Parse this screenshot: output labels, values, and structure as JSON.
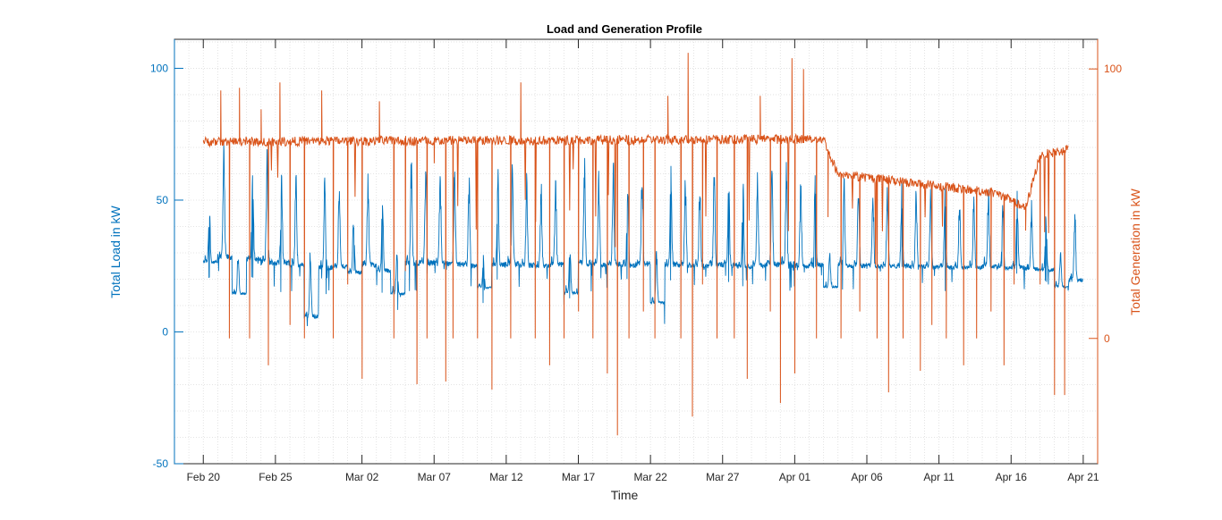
{
  "chart_data": {
    "type": "line",
    "title": "Load and Generation Profile",
    "xlabel": "Time",
    "ylabel_left": "Total Load in kW",
    "ylabel_right": "Total Generation in kW",
    "x_tick_labels": [
      "Feb 20",
      "Feb 25",
      "Mar 02",
      "Mar 07",
      "Mar 12",
      "Mar 17",
      "Mar 22",
      "Mar 27",
      "Apr 01",
      "Apr 06",
      "Apr 11",
      "Apr 16",
      "Apr 21"
    ],
    "x_range": [
      "Feb 18",
      "Apr 22"
    ],
    "y_left_ticks": [
      "-50",
      "0",
      "50",
      "100"
    ],
    "y_left_range": [
      -50,
      111
    ],
    "y_right_ticks": [
      "0",
      "100"
    ],
    "y_right_range": [
      -46.5,
      111
    ],
    "grid": "minor dotted",
    "colors": {
      "load": "#0072bd",
      "generation": "#d95319",
      "axes": "#262626"
    },
    "series": [
      {
        "axis": "left",
        "color": "#0072bd",
        "x_start": "Feb 20",
        "x_end": "Apr 20",
        "profile": "daily cycle",
        "daily_peaks": [
          48,
          68,
          30,
          62,
          66,
          64,
          58,
          30,
          57,
          55,
          45,
          60,
          50,
          30,
          64,
          65,
          62,
          60,
          58,
          28,
          60,
          62,
          58,
          55,
          60,
          32,
          64,
          60,
          62,
          58,
          62,
          30,
          60,
          58,
          56,
          60,
          58,
          55,
          58,
          60,
          62,
          56,
          58,
          30,
          58,
          57,
          55,
          55,
          56,
          54,
          53,
          52,
          50,
          52,
          55,
          50,
          52,
          48,
          45,
          30,
          48
        ],
        "daily_base": [
          23,
          22,
          12,
          22,
          20,
          20,
          20,
          2,
          19,
          20,
          19,
          20,
          19,
          12,
          20,
          20,
          20,
          20,
          20,
          15,
          20,
          20,
          20,
          20,
          20,
          12,
          20,
          20,
          20,
          20,
          20,
          8,
          20,
          20,
          20,
          20,
          20,
          20,
          20,
          20,
          20,
          20,
          20,
          15,
          20,
          20,
          20,
          20,
          20,
          20,
          20,
          20,
          20,
          20,
          20,
          20,
          20,
          20,
          20,
          15,
          15
        ]
      },
      {
        "axis": "right",
        "color": "#d95319",
        "x_start": "Feb 20",
        "x_end": "Apr 20",
        "profile": "plateau",
        "plateau_x": [
          "Feb 20",
          "Apr 03",
          "Apr 04",
          "Apr 15",
          "Apr 17",
          "Apr 18",
          "Apr 20"
        ],
        "plateau_y": [
          73,
          74,
          61,
          54,
          48,
          68,
          70
        ],
        "spikes": [
          {
            "x": "Feb 21.2",
            "y": 92
          },
          {
            "x": "Feb 21.8",
            "y": 0
          },
          {
            "x": "Feb 22.5",
            "y": 93
          },
          {
            "x": "Feb 23.2",
            "y": 0
          },
          {
            "x": "Feb 24.0",
            "y": 85
          },
          {
            "x": "Feb 24.5",
            "y": -10
          },
          {
            "x": "Feb 25.3",
            "y": 95
          },
          {
            "x": "Feb 26.0",
            "y": 5
          },
          {
            "x": "Feb 27.0",
            "y": 0
          },
          {
            "x": "Feb 28.2",
            "y": 92
          },
          {
            "x": "Feb 29.0",
            "y": 0
          },
          {
            "x": "Mar 01.0",
            "y": 20
          },
          {
            "x": "Mar 02.0",
            "y": -15
          },
          {
            "x": "Mar 03.2",
            "y": 88
          },
          {
            "x": "Mar 04.2",
            "y": 0
          },
          {
            "x": "Mar 05.0",
            "y": 25
          },
          {
            "x": "Mar 05.8",
            "y": -17
          },
          {
            "x": "Mar 06.5",
            "y": 0
          },
          {
            "x": "Mar 07.0",
            "y": 65
          },
          {
            "x": "Mar 07.8",
            "y": -16
          },
          {
            "x": "Mar 08.3",
            "y": 0
          },
          {
            "x": "Mar 09.0",
            "y": 74
          },
          {
            "x": "Mar 10.0",
            "y": 0
          },
          {
            "x": "Mar 11.0",
            "y": -19
          },
          {
            "x": "Mar 12.3",
            "y": 0
          },
          {
            "x": "Mar 13.0",
            "y": 95
          },
          {
            "x": "Mar 14.0",
            "y": 0
          },
          {
            "x": "Mar 15.0",
            "y": -10
          },
          {
            "x": "Mar 16.0",
            "y": 0
          },
          {
            "x": "Mar 17.0",
            "y": 10
          },
          {
            "x": "Mar 18.0",
            "y": 0
          },
          {
            "x": "Mar 19.0",
            "y": -13
          },
          {
            "x": "Mar 19.7",
            "y": -36
          },
          {
            "x": "Mar 20.5",
            "y": 0
          },
          {
            "x": "Mar 21.5",
            "y": 10
          },
          {
            "x": "Mar 22.3",
            "y": 0
          },
          {
            "x": "Mar 23.2",
            "y": 90
          },
          {
            "x": "Mar 24.1",
            "y": 0
          },
          {
            "x": "Mar 24.6",
            "y": 106
          },
          {
            "x": "Mar 24.9",
            "y": -29
          },
          {
            "x": "Mar 25.6",
            "y": 20
          },
          {
            "x": "Mar 26.6",
            "y": 0
          },
          {
            "x": "Mar 27.8",
            "y": 0
          },
          {
            "x": "Mar 28.7",
            "y": -15
          },
          {
            "x": "Mar 29.6",
            "y": 90
          },
          {
            "x": "Mar 30.3",
            "y": 10
          },
          {
            "x": "Mar 31.0",
            "y": -24
          },
          {
            "x": "Mar 31.8",
            "y": 104
          },
          {
            "x": "Apr 01.0",
            "y": -13
          },
          {
            "x": "Apr 01.6",
            "y": 100
          },
          {
            "x": "Apr 02.5",
            "y": 0
          },
          {
            "x": "Apr 03.3",
            "y": 45
          },
          {
            "x": "Apr 04.2",
            "y": 0
          },
          {
            "x": "Apr 05.5",
            "y": 10
          },
          {
            "x": "Apr 06.7",
            "y": 0
          },
          {
            "x": "Apr 07.5",
            "y": -20
          },
          {
            "x": "Apr 08.5",
            "y": 0
          },
          {
            "x": "Apr 09.7",
            "y": -12
          },
          {
            "x": "Apr 10.5",
            "y": 5
          },
          {
            "x": "Apr 11.5",
            "y": 0
          },
          {
            "x": "Apr 12.7",
            "y": -10
          },
          {
            "x": "Apr 13.6",
            "y": 0
          },
          {
            "x": "Apr 14.6",
            "y": 10
          },
          {
            "x": "Apr 15.5",
            "y": -10
          },
          {
            "x": "Apr 16.2",
            "y": 20
          },
          {
            "x": "Apr 17.0",
            "y": 40
          },
          {
            "x": "Apr 18.0",
            "y": 20
          },
          {
            "x": "Apr 19.0",
            "y": -21
          },
          {
            "x": "Apr 19.7",
            "y": -21
          },
          {
            "x": "Apr 20.0",
            "y": 60
          }
        ]
      }
    ]
  }
}
